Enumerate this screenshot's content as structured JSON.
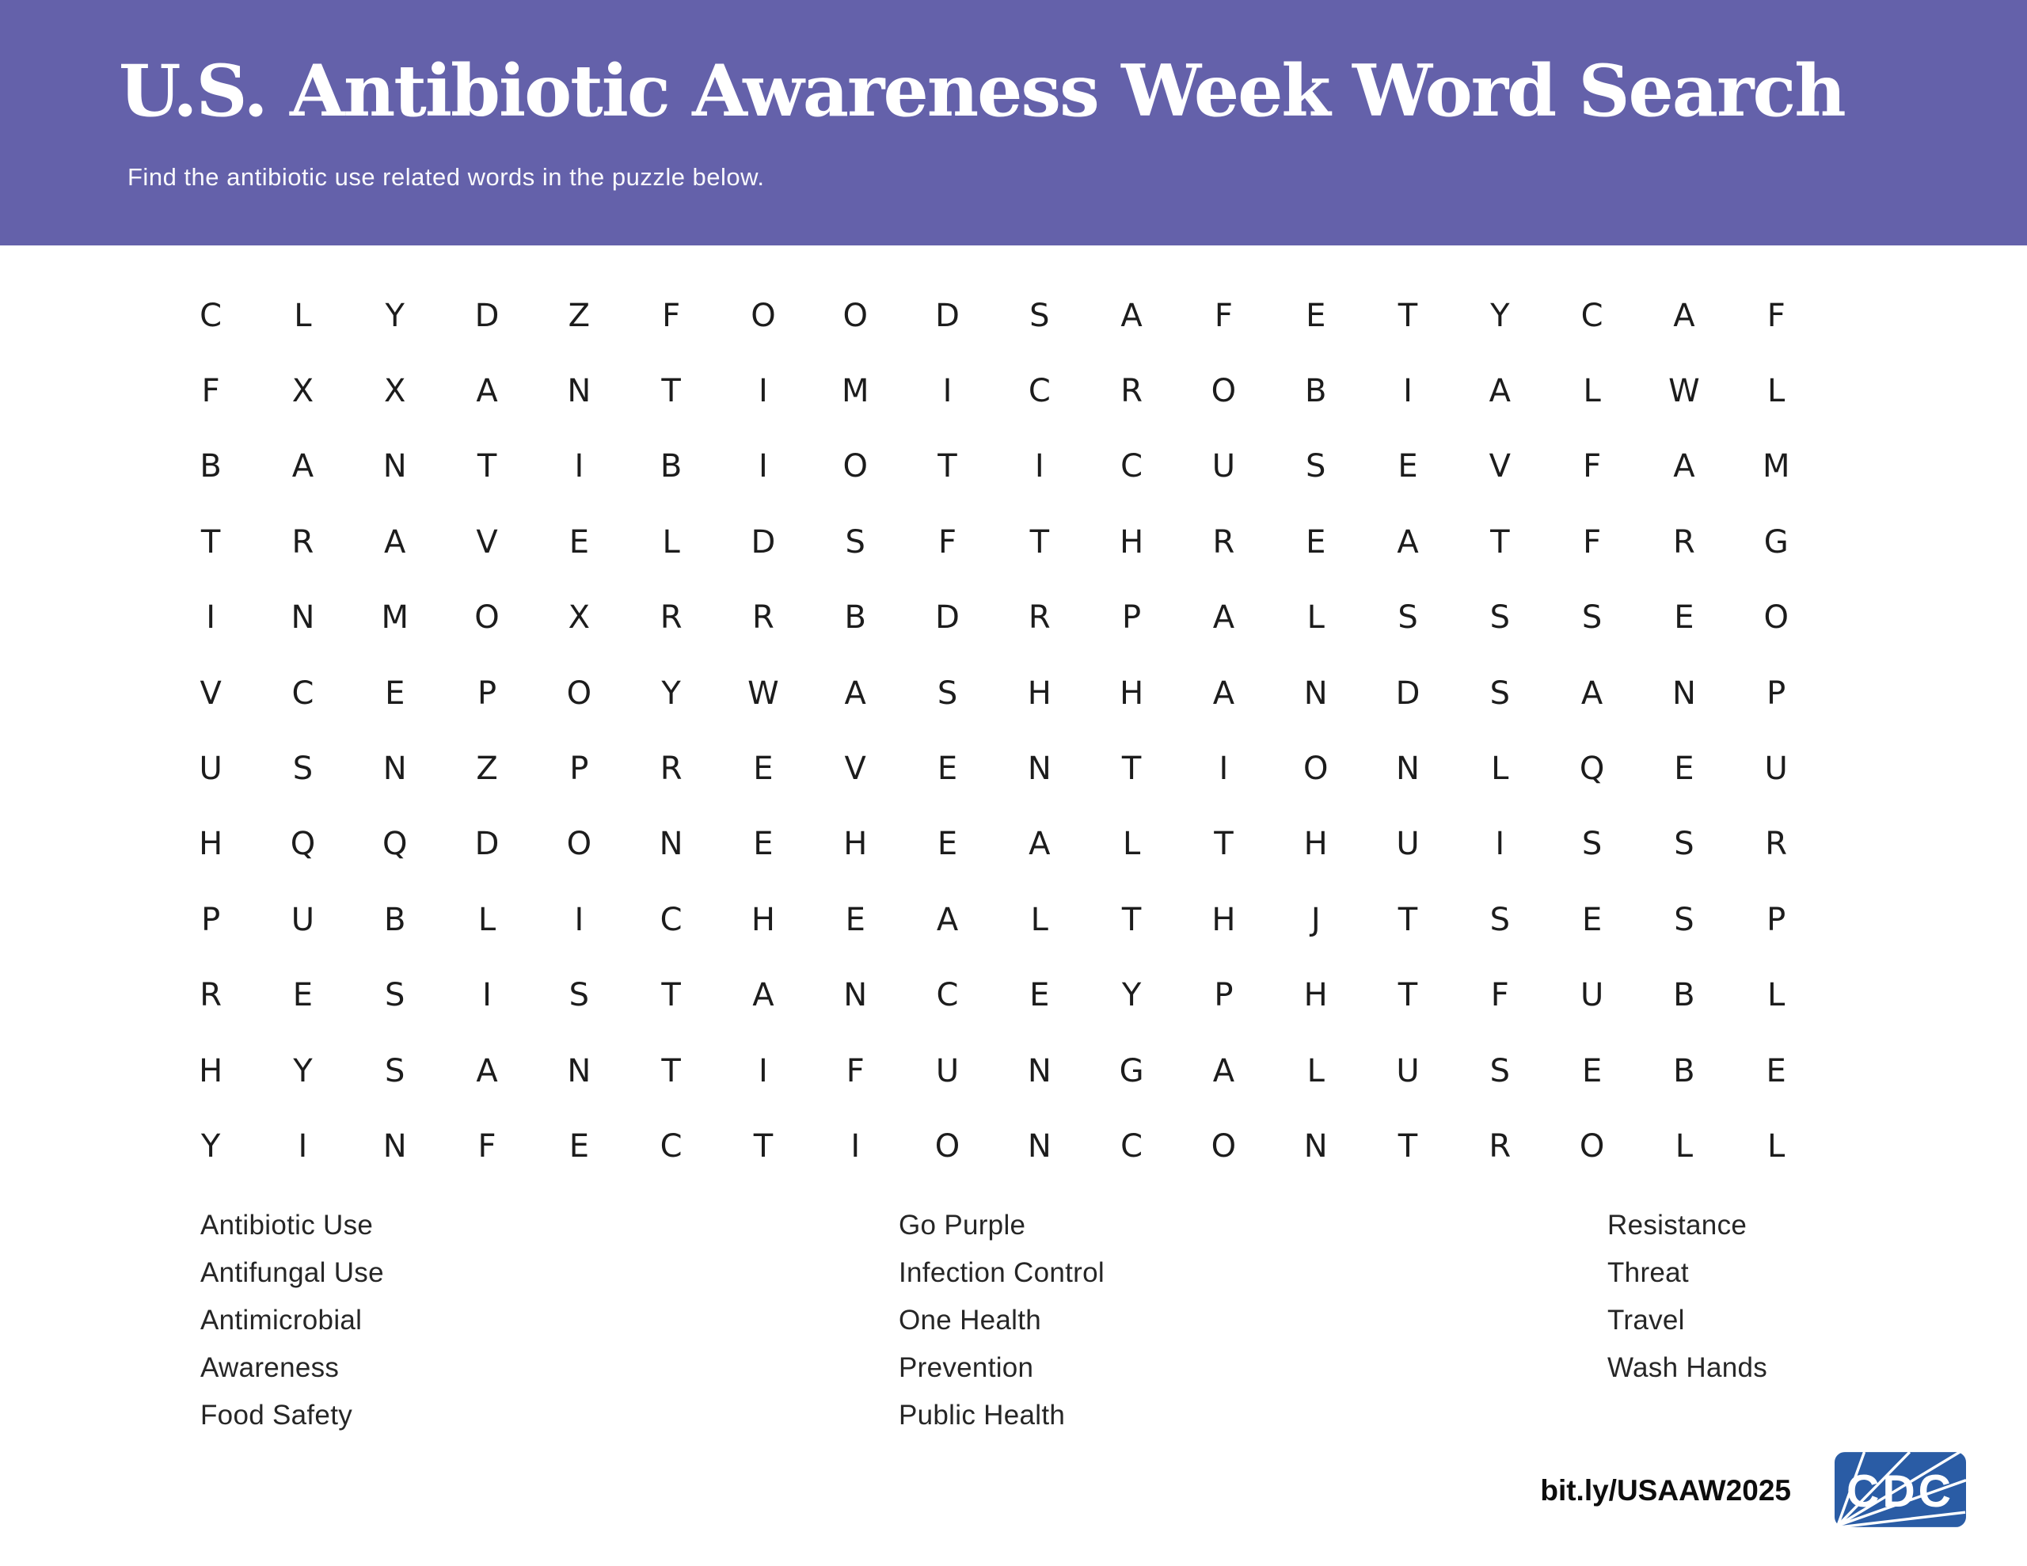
{
  "header": {
    "title": "U.S. Antibiotic Awareness Week Word Search",
    "subtitle": "Find the antibiotic use related words in the puzzle below.",
    "background_color": "#6461aa",
    "text_color": "#ffffff"
  },
  "puzzle": {
    "columns": 18,
    "rows": 12,
    "letters": [
      "C L Y D Z F O O D S A F E T Y C A F",
      "F X X A N T I M I C R O B I A L W L",
      "B A N T I B I O T I C U S E V F A M",
      "T R A V E L D S F T H R E A T F R G",
      "I N M O X R R B D R P A L S S S E O",
      "V C E P O Y W A S H H A N D S A N P",
      "U S N Z P R E V E N T I O N L Q E U",
      "H Q Q D O N E H E A L T H U I S S R",
      "P U B L I C H E A L T H J T S E S P",
      "R E S I S T A N C E Y P H T F U B L",
      "H Y S A N T I F U N G A L U S E B E",
      "Y I N F E C T I O N C O N T R O L L"
    ]
  },
  "word_list": {
    "columns": [
      {
        "words": [
          "Antibiotic Use",
          "Antifungal Use",
          "Antimicrobial",
          "Awareness",
          "Food Safety"
        ]
      },
      {
        "words": [
          "Go Purple",
          "Infection Control",
          "One Health",
          "Prevention",
          "Public Health"
        ]
      },
      {
        "words": [
          "Resistance",
          "Threat",
          "Travel",
          "Wash Hands"
        ]
      }
    ]
  },
  "footer": {
    "link": "bit.ly/USAAW2025",
    "logo": {
      "text": "CDC",
      "color": "#2a5ca5"
    }
  }
}
